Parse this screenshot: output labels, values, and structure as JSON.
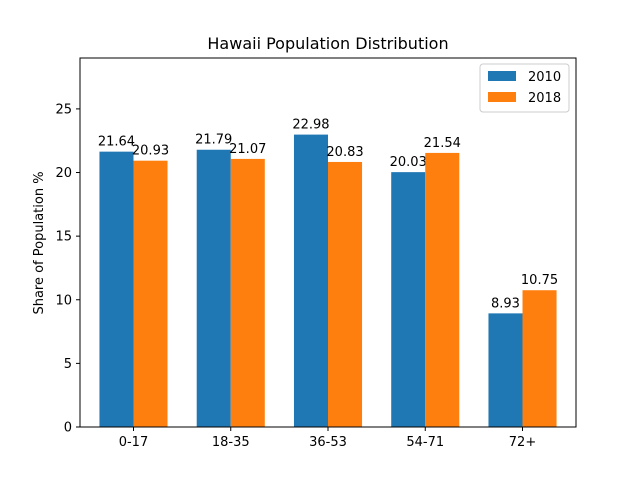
{
  "chart_data": {
    "type": "bar",
    "title": "Hawaii Population Distribution",
    "xlabel": "",
    "ylabel": "Share of Population %",
    "categories": [
      "0-17",
      "18-35",
      "36-53",
      "54-71",
      "72+"
    ],
    "series": [
      {
        "name": "2010",
        "values": [
          21.64,
          21.79,
          22.98,
          20.03,
          8.93
        ],
        "color": "#1f77b4"
      },
      {
        "name": "2018",
        "values": [
          20.93,
          21.07,
          20.83,
          21.54,
          10.75
        ],
        "color": "#ff7f0e"
      }
    ],
    "ylim": [
      0,
      29
    ],
    "yticks": [
      0,
      5,
      10,
      15,
      20,
      25
    ],
    "data_labels": true,
    "grid": false,
    "legend_position": "top-right"
  }
}
